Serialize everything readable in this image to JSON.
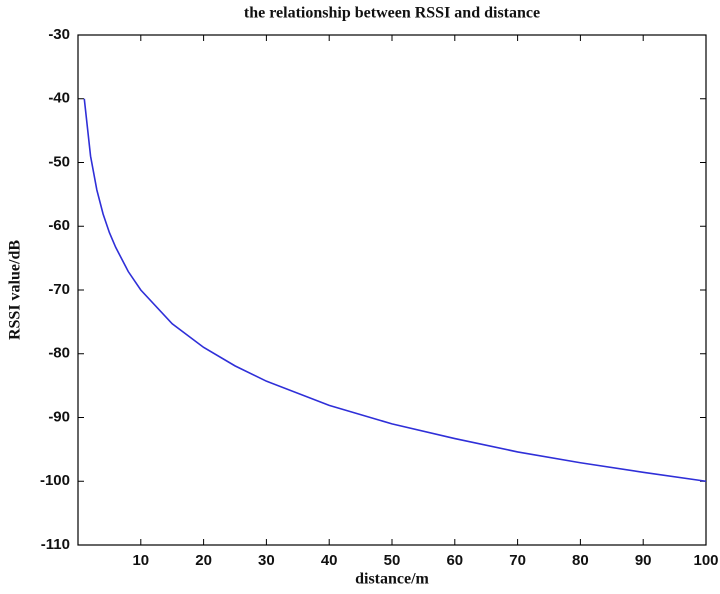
{
  "chart_data": {
    "type": "line",
    "title": "the relationship between RSSI and distance",
    "x_label": "distance/m",
    "y_label": "RSSI value/dB",
    "x": [
      1,
      2,
      3,
      4,
      5,
      6,
      8,
      10,
      15,
      20,
      25,
      30,
      40,
      50,
      60,
      70,
      80,
      90,
      100
    ],
    "series": [
      {
        "color": "#2f2fd8",
        "values": [
          -40,
          -49.0,
          -54.3,
          -58.1,
          -61.0,
          -63.3,
          -67.1,
          -70,
          -75.3,
          -79.0,
          -81.9,
          -84.3,
          -88.1,
          -91.0,
          -93.3,
          -95.4,
          -97.1,
          -98.6,
          -100
        ]
      }
    ],
    "xlim": [
      0,
      100
    ],
    "xticks": [
      10,
      20,
      30,
      40,
      50,
      60,
      70,
      80,
      90,
      100
    ],
    "ylim": [
      -110,
      -30
    ],
    "yticks": [
      -110,
      -100,
      -90,
      -80,
      -70,
      -60,
      -50,
      -40,
      -30
    ],
    "grid": false
  }
}
